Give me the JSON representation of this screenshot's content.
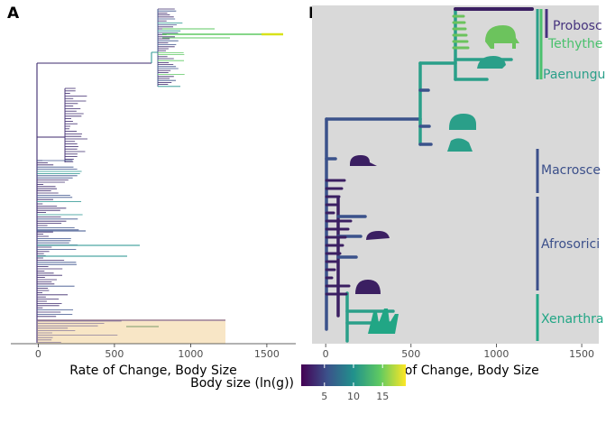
{
  "panel_a": {
    "tag": "A",
    "xlabel": "Rate of Change, Body Size",
    "xticks": [
      0,
      500,
      1000,
      1500
    ],
    "xlim": [
      -180,
      1690
    ]
  },
  "panel_b": {
    "tag": "B",
    "xlabel": "Rate of Change, Body Size",
    "xticks": [
      0,
      500,
      1000,
      1500
    ],
    "xlim": [
      -80,
      1600
    ],
    "clades": [
      {
        "name": "Proboscidea",
        "label": "Probosc",
        "color": "#46337e"
      },
      {
        "name": "Tethytheria",
        "label": "Tethythe",
        "color": "#4ac16d"
      },
      {
        "name": "Paenungulata",
        "label": "Paenungu",
        "color": "#2a9f89"
      },
      {
        "name": "Macroscelidea",
        "label": "Macrosce",
        "color": "#3b4f8a"
      },
      {
        "name": "Afrosoricida",
        "label": "Afrosorici",
        "color": "#3b4f8a"
      },
      {
        "name": "Xenarthra",
        "label": "Xenarthra",
        "color": "#21a685"
      }
    ],
    "silhouettes": [
      "elephant-icon",
      "hyrax-icon",
      "aardvark-icon",
      "armadillo-icon",
      "shrew-icon",
      "tenrec-icon",
      "hedgehog-icon",
      "sloth-icon"
    ]
  },
  "legend": {
    "title": "Body size (ln(g))",
    "ticks": [
      5,
      10,
      15
    ],
    "range": [
      1,
      19
    ],
    "colors": [
      "#440154",
      "#3b528b",
      "#21918c",
      "#5ec962",
      "#fde725"
    ]
  }
}
